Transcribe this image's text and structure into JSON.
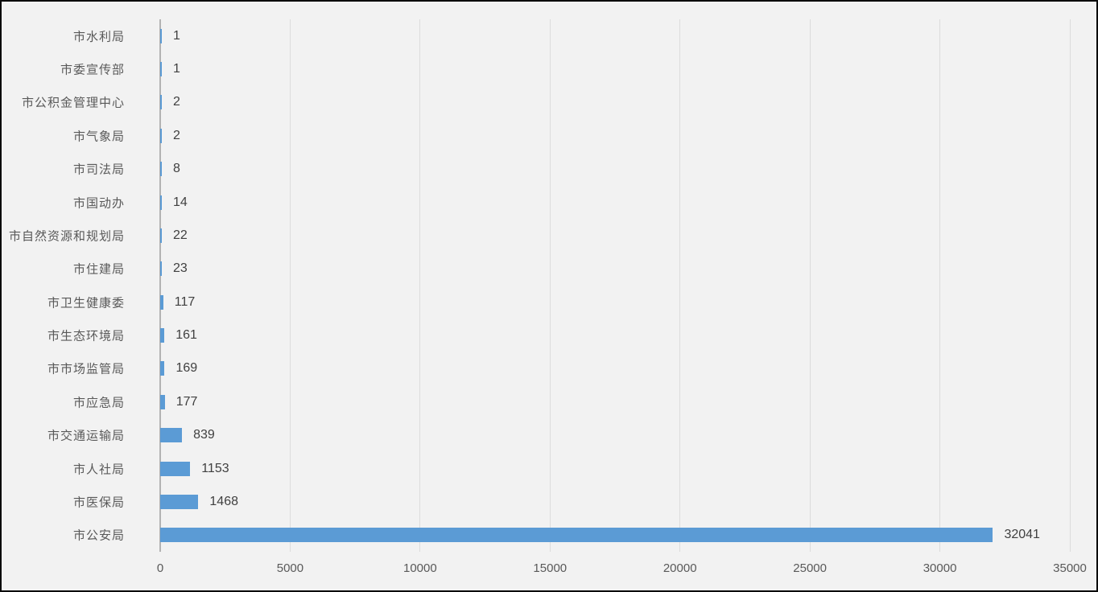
{
  "chart_data": {
    "type": "bar",
    "orientation": "horizontal",
    "title": "",
    "categories": [
      "市水利局",
      "市委宣传部",
      "市公积金管理中心",
      "市气象局",
      "市司法局",
      "市国动办",
      "市自然资源和规划局",
      "市住建局",
      "市卫生健康委",
      "市生态环境局",
      "市市场监管局",
      "市应急局",
      "市交通运输局",
      "市人社局",
      "市医保局",
      "市公安局"
    ],
    "values": [
      1,
      1,
      2,
      2,
      8,
      14,
      22,
      23,
      117,
      161,
      169,
      177,
      839,
      1153,
      1468,
      32041
    ],
    "x_ticks": [
      0,
      5000,
      10000,
      15000,
      20000,
      25000,
      30000,
      35000
    ],
    "xlim": [
      0,
      35000
    ],
    "xlabel": "",
    "ylabel": "",
    "grid": "vertical",
    "legend": "none",
    "data_labels": true
  },
  "colors": {
    "bar": "#5b9bd5",
    "background": "#f2f2f2",
    "frame_border": "#0a0a0a",
    "gridline": "#dcdcdc",
    "axis_line": "#b3b3b3",
    "category_label": "#595959",
    "value_label": "#404040",
    "tick_label": "#595959"
  }
}
